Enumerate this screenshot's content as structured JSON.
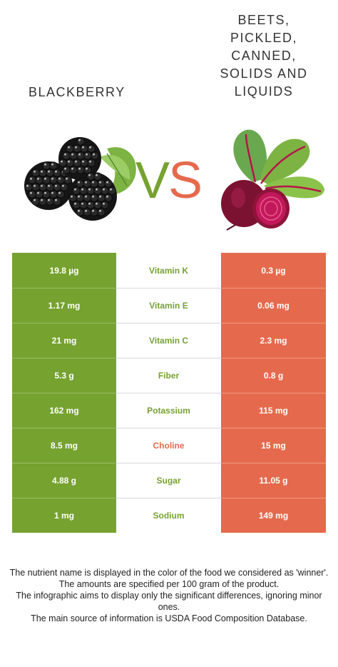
{
  "left_food": {
    "name": "Blackberry",
    "color": "#76a230"
  },
  "right_food": {
    "name": "Beets, pickled,\ncanned,\nsolids and\nliquids",
    "color": "#e56a4d"
  },
  "vs": {
    "v": "V",
    "s": "S"
  },
  "rows": [
    {
      "left": "19.8 µg",
      "nutrient": "Vitamin K",
      "right": "0.3 µg",
      "winner": "left"
    },
    {
      "left": "1.17 mg",
      "nutrient": "Vitamin E",
      "right": "0.06 mg",
      "winner": "left"
    },
    {
      "left": "21 mg",
      "nutrient": "Vitamin C",
      "right": "2.3 mg",
      "winner": "left"
    },
    {
      "left": "5.3 g",
      "nutrient": "Fiber",
      "right": "0.8 g",
      "winner": "left"
    },
    {
      "left": "162 mg",
      "nutrient": "Potassium",
      "right": "115 mg",
      "winner": "left"
    },
    {
      "left": "8.5 mg",
      "nutrient": "Choline",
      "right": "15 mg",
      "winner": "right"
    },
    {
      "left": "4.88 g",
      "nutrient": "Sugar",
      "right": "11.05 g",
      "winner": "left"
    },
    {
      "left": "1 mg",
      "nutrient": "Sodium",
      "right": "149 mg",
      "winner": "left"
    }
  ],
  "footer": [
    "The nutrient name is displayed in the color of the food we considered as 'winner'.",
    "The amounts are specified per 100 gram of the product.",
    "The infographic aims to display only the significant differences, ignoring minor ones.",
    "The main source of information is USDA Food Composition Database."
  ]
}
